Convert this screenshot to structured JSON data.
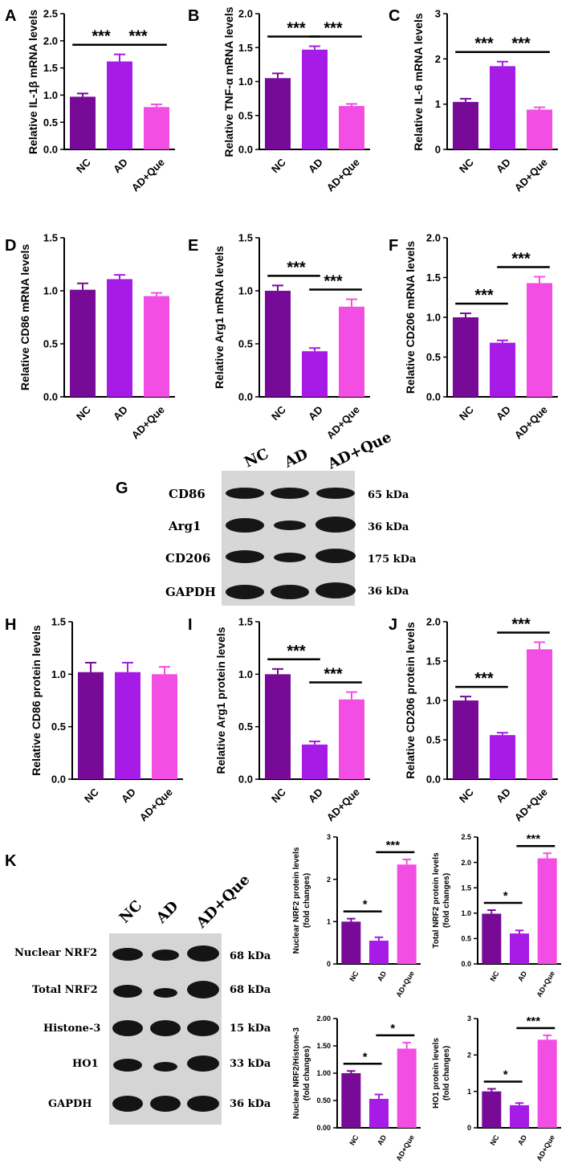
{
  "colors": {
    "NC": "#780a98",
    "AD": "#a61ce6",
    "AD+Que": "#f34ee3"
  },
  "categories": [
    "NC",
    "AD",
    "AD+Que"
  ],
  "chart_data": [
    {
      "panel": "A",
      "type": "bar",
      "ylabel": "Relative IL-1β mRNA levels",
      "ylim": [
        0,
        2.5
      ],
      "ticks": [
        "0.0",
        "0.5",
        "1.0",
        "1.5",
        "2.0",
        "2.5"
      ],
      "categories": [
        "NC",
        "AD",
        "AD+Que"
      ],
      "values": [
        0.97,
        1.62,
        0.78
      ],
      "errors": [
        0.06,
        0.13,
        0.05
      ],
      "sig": [
        {
          "from": 0,
          "to": 1,
          "label": "***"
        },
        {
          "from": 1,
          "to": 2,
          "label": "***"
        }
      ]
    },
    {
      "panel": "B",
      "type": "bar",
      "ylabel": "Relative TNF-α mRNA levels",
      "ylim": [
        0,
        2.0
      ],
      "ticks": [
        "0.0",
        "0.5",
        "1.0",
        "1.5",
        "2.0"
      ],
      "categories": [
        "NC",
        "AD",
        "AD+Que"
      ],
      "values": [
        1.05,
        1.47,
        0.64
      ],
      "errors": [
        0.07,
        0.05,
        0.03
      ],
      "sig": [
        {
          "from": 0,
          "to": 1,
          "label": "***"
        },
        {
          "from": 1,
          "to": 2,
          "label": "***"
        }
      ]
    },
    {
      "panel": "C",
      "type": "bar",
      "ylabel": "Relative IL-6 mRNA levels",
      "ylim": [
        0,
        3
      ],
      "ticks": [
        "0",
        "1",
        "2",
        "3"
      ],
      "categories": [
        "NC",
        "AD",
        "AD+Que"
      ],
      "values": [
        1.05,
        1.84,
        0.88
      ],
      "errors": [
        0.07,
        0.1,
        0.05
      ],
      "sig": [
        {
          "from": 0,
          "to": 1,
          "label": "***"
        },
        {
          "from": 1,
          "to": 2,
          "label": "***"
        }
      ]
    },
    {
      "panel": "D",
      "type": "bar",
      "ylabel": "Relative CD86 mRNA levels",
      "ylim": [
        0,
        1.5
      ],
      "ticks": [
        "0.0",
        "0.5",
        "1.0",
        "1.5"
      ],
      "categories": [
        "NC",
        "AD",
        "AD+Que"
      ],
      "values": [
        1.01,
        1.11,
        0.95
      ],
      "errors": [
        0.06,
        0.04,
        0.03
      ],
      "sig": []
    },
    {
      "panel": "E",
      "type": "bar",
      "ylabel": "Relative Arg1 mRNA levels",
      "ylim": [
        0,
        1.5
      ],
      "ticks": [
        "0.0",
        "0.5",
        "1.0",
        "1.5"
      ],
      "categories": [
        "NC",
        "AD",
        "AD+Que"
      ],
      "values": [
        1.0,
        0.43,
        0.85
      ],
      "errors": [
        0.05,
        0.03,
        0.07
      ],
      "sig": [
        {
          "from": 0,
          "to": 1,
          "label": "***"
        },
        {
          "from": 1,
          "to": 2,
          "label": "***"
        }
      ]
    },
    {
      "panel": "F",
      "type": "bar",
      "ylabel": "Relative CD206 mRNA levels",
      "ylim": [
        0,
        2.0
      ],
      "ticks": [
        "0.0",
        "0.5",
        "1.0",
        "1.5",
        "2.0"
      ],
      "categories": [
        "NC",
        "AD",
        "AD+Que"
      ],
      "values": [
        1.0,
        0.68,
        1.43
      ],
      "errors": [
        0.05,
        0.03,
        0.08
      ],
      "sig": [
        {
          "from": 0,
          "to": 1,
          "label": "***"
        },
        {
          "from": 1,
          "to": 2,
          "label": "***"
        }
      ]
    },
    {
      "panel": "H",
      "type": "bar",
      "ylabel": "Relative CD86 protein levels",
      "ylim": [
        0,
        1.5
      ],
      "ticks": [
        "0.0",
        "0.5",
        "1.0",
        "1.5"
      ],
      "categories": [
        "NC",
        "AD",
        "AD+Que"
      ],
      "values": [
        1.02,
        1.02,
        1.0
      ],
      "errors": [
        0.09,
        0.09,
        0.07
      ],
      "sig": []
    },
    {
      "panel": "I",
      "type": "bar",
      "ylabel": "Relative Arg1 protein levels",
      "ylim": [
        0,
        1.5
      ],
      "ticks": [
        "0.0",
        "0.5",
        "1.0",
        "1.5"
      ],
      "categories": [
        "NC",
        "AD",
        "AD+Que"
      ],
      "values": [
        1.0,
        0.33,
        0.76
      ],
      "errors": [
        0.05,
        0.03,
        0.07
      ],
      "sig": [
        {
          "from": 0,
          "to": 1,
          "label": "***"
        },
        {
          "from": 1,
          "to": 2,
          "label": "***"
        }
      ]
    },
    {
      "panel": "J",
      "type": "bar",
      "ylabel": "Relative CD206 protein levels",
      "ylim": [
        0,
        2.0
      ],
      "ticks": [
        "0.0",
        "0.5",
        "1.0",
        "1.5",
        "2.0"
      ],
      "categories": [
        "NC",
        "AD",
        "AD+Que"
      ],
      "values": [
        1.0,
        0.56,
        1.65
      ],
      "errors": [
        0.05,
        0.03,
        0.09
      ],
      "sig": [
        {
          "from": 0,
          "to": 1,
          "label": "***"
        },
        {
          "from": 1,
          "to": 2,
          "label": "***"
        }
      ]
    },
    {
      "panel": "K1",
      "type": "bar",
      "ylabel": [
        "Nuclear NRF2 protein levels",
        "(fold changes)"
      ],
      "ylim": [
        0,
        3
      ],
      "ticks": [
        "0",
        "1",
        "2",
        "3"
      ],
      "categories": [
        "NC",
        "AD",
        "AD+Que"
      ],
      "values": [
        1.0,
        0.55,
        2.35
      ],
      "errors": [
        0.07,
        0.08,
        0.12
      ],
      "sig": [
        {
          "from": 0,
          "to": 1,
          "label": "*"
        },
        {
          "from": 1,
          "to": 2,
          "label": "***"
        }
      ]
    },
    {
      "panel": "K2",
      "type": "bar",
      "ylabel": [
        "Total NRF2 protein levels",
        "(fold changes)"
      ],
      "ylim": [
        0,
        2.5
      ],
      "ticks": [
        "0.0",
        "0.5",
        "1.0",
        "1.5",
        "2.0",
        "2.5"
      ],
      "categories": [
        "NC",
        "AD",
        "AD+Que"
      ],
      "values": [
        0.99,
        0.6,
        2.08
      ],
      "errors": [
        0.07,
        0.06,
        0.1
      ],
      "sig": [
        {
          "from": 0,
          "to": 1,
          "label": "*"
        },
        {
          "from": 1,
          "to": 2,
          "label": "***"
        }
      ]
    },
    {
      "panel": "K3",
      "type": "bar",
      "ylabel": [
        "Nuclear NRF2/Histone-3",
        "(fold changes)"
      ],
      "ylim": [
        0,
        2.0
      ],
      "ticks": [
        "0.00",
        "0.50",
        "1.00",
        "1.50",
        "2.00"
      ],
      "categories": [
        "NC",
        "AD",
        "AD+Que"
      ],
      "values": [
        1.0,
        0.53,
        1.45
      ],
      "errors": [
        0.04,
        0.08,
        0.11
      ],
      "sig": [
        {
          "from": 0,
          "to": 1,
          "label": "*"
        },
        {
          "from": 1,
          "to": 2,
          "label": "*"
        }
      ]
    },
    {
      "panel": "K4",
      "type": "bar",
      "ylabel": [
        "HO1 protein levels",
        "(fold changes)"
      ],
      "ylim": [
        0,
        3
      ],
      "ticks": [
        "0",
        "1",
        "2",
        "3"
      ],
      "categories": [
        "NC",
        "AD",
        "AD+Que"
      ],
      "values": [
        1.0,
        0.62,
        2.42
      ],
      "errors": [
        0.07,
        0.06,
        0.12
      ],
      "sig": [
        {
          "from": 0,
          "to": 1,
          "label": "*"
        },
        {
          "from": 1,
          "to": 2,
          "label": "***"
        }
      ]
    }
  ],
  "panel_labels": {
    "A": "A",
    "B": "B",
    "C": "C",
    "D": "D",
    "E": "E",
    "F": "F",
    "G": "G",
    "H": "H",
    "I": "I",
    "J": "J",
    "K": "K"
  },
  "blot_g": {
    "lanes": [
      "NC",
      "AD",
      "AD+Que"
    ],
    "rows": [
      {
        "name": "CD86",
        "kda": "65 kDa"
      },
      {
        "name": "Arg1",
        "kda": "36 kDa"
      },
      {
        "name": "CD206",
        "kda": "175 kDa"
      },
      {
        "name": "GAPDH",
        "kda": "36 kDa"
      }
    ]
  },
  "blot_k": {
    "lanes": [
      "NC",
      "AD",
      "AD+Que"
    ],
    "rows": [
      {
        "name": "Nuclear NRF2",
        "kda": "68 kDa"
      },
      {
        "name": "Total NRF2",
        "kda": "68 kDa"
      },
      {
        "name": "Histone-3",
        "kda": "15 kDa"
      },
      {
        "name": "HO1",
        "kda": "33 kDa"
      },
      {
        "name": "GAPDH",
        "kda": "36 kDa"
      }
    ]
  }
}
